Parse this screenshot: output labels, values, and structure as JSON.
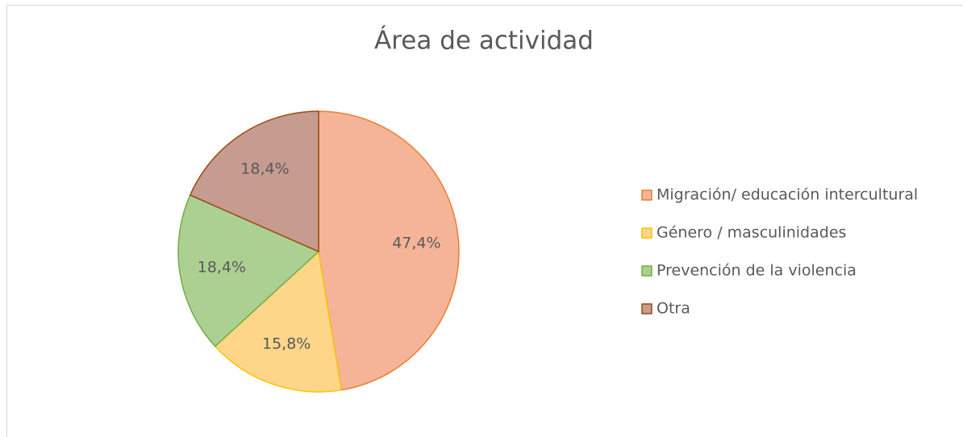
{
  "chart_data": {
    "type": "pie",
    "title": "Área de actividad",
    "categories": [
      "Migración/ educación intercultural",
      "Género / masculinidades",
      "Prevención de la violencia",
      "Otra"
    ],
    "values": [
      47.4,
      15.8,
      18.4,
      18.4
    ],
    "value_labels": [
      "47,4%",
      "15,8%",
      "18,4%",
      "18,4%"
    ],
    "colors": [
      "#f5b497",
      "#fdd689",
      "#acd092",
      "#c69c91"
    ],
    "edge_colors": [
      "#ed7d31",
      "#ffc000",
      "#70ad47",
      "#9e480e"
    ],
    "legend": "right"
  }
}
